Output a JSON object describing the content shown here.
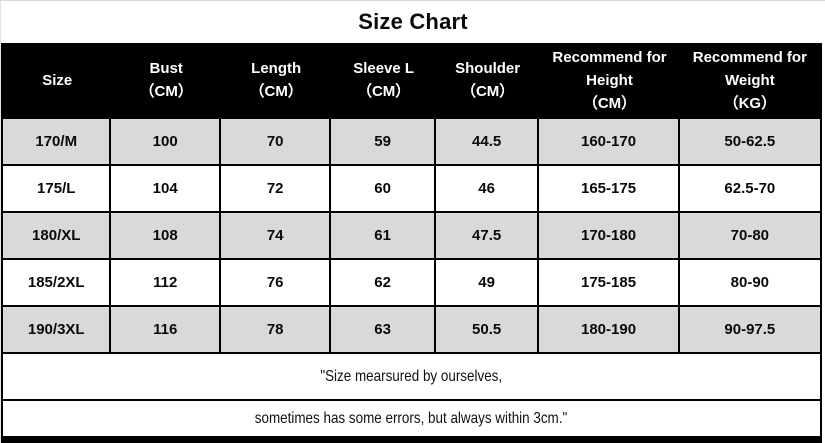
{
  "title": "Size Chart",
  "chart_data": {
    "type": "table",
    "title": "Size Chart",
    "columns": [
      {
        "label": "Size",
        "unit": ""
      },
      {
        "label": "Bust",
        "unit": "（CM）"
      },
      {
        "label": "Length",
        "unit": "（CM）"
      },
      {
        "label": "Sleeve L",
        "unit": "（CM）"
      },
      {
        "label": "Shoulder",
        "unit": "（CM）"
      },
      {
        "label": "Recommend for Height",
        "unit": "（CM）"
      },
      {
        "label": "Recommend for Weight",
        "unit": "（KG）"
      }
    ],
    "rows": [
      [
        "170/M",
        "100",
        "70",
        "59",
        "44.5",
        "160-170",
        "50-62.5"
      ],
      [
        "175/L",
        "104",
        "72",
        "60",
        "46",
        "165-175",
        "62.5-70"
      ],
      [
        "180/XL",
        "108",
        "74",
        "61",
        "47.5",
        "170-180",
        "70-80"
      ],
      [
        "185/2XL",
        "112",
        "76",
        "62",
        "49",
        "175-185",
        "80-90"
      ],
      [
        "190/3XL",
        "116",
        "78",
        "63",
        "50.5",
        "180-190",
        "90-97.5"
      ]
    ],
    "footnotes": [
      "\"Size mearsured by ourselves,",
      "sometimes has some errors, but always within 3cm.\""
    ]
  },
  "colors": {
    "header_bg": "#000000",
    "header_text": "#ffffff",
    "row_alt_bg": "#d9d9d9",
    "row_bg": "#ffffff",
    "border": "#000000"
  }
}
